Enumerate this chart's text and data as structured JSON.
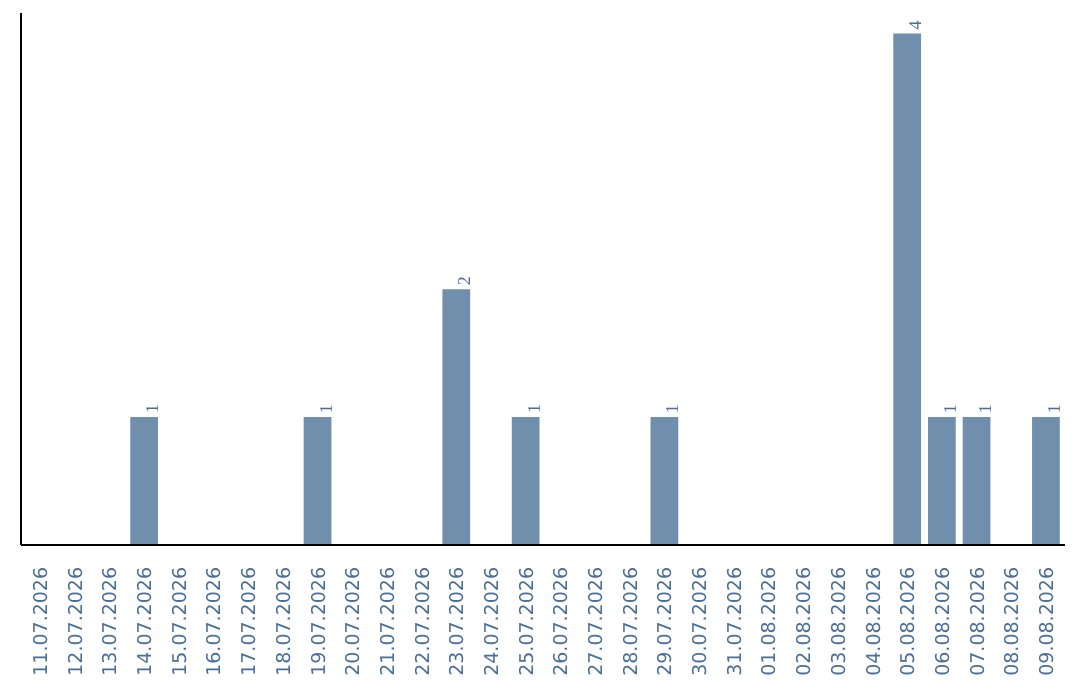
{
  "chart_data": {
    "type": "bar",
    "categories": [
      "11.07.2026",
      "12.07.2026",
      "13.07.2026",
      "14.07.2026",
      "15.07.2026",
      "16.07.2026",
      "17.07.2026",
      "18.07.2026",
      "19.07.2026",
      "20.07.2026",
      "21.07.2026",
      "22.07.2026",
      "23.07.2026",
      "24.07.2026",
      "25.07.2026",
      "26.07.2026",
      "27.07.2026",
      "28.07.2026",
      "29.07.2026",
      "30.07.2026",
      "31.07.2026",
      "01.08.2026",
      "02.08.2026",
      "03.08.2026",
      "04.08.2026",
      "05.08.2026",
      "06.08.2026",
      "07.08.2026",
      "08.08.2026",
      "09.08.2026"
    ],
    "values": [
      0,
      0,
      0,
      1,
      0,
      0,
      0,
      0,
      1,
      0,
      0,
      0,
      2,
      0,
      1,
      0,
      0,
      0,
      1,
      0,
      0,
      0,
      0,
      0,
      0,
      4,
      1,
      1,
      0,
      1
    ],
    "value_labels": [
      null,
      null,
      null,
      "1",
      null,
      null,
      null,
      null,
      "1",
      null,
      null,
      null,
      "2",
      null,
      "1",
      null,
      null,
      null,
      "1",
      null,
      null,
      null,
      null,
      null,
      null,
      "4",
      "1",
      "1",
      null,
      "1"
    ],
    "color": "#6f8fad"
  }
}
